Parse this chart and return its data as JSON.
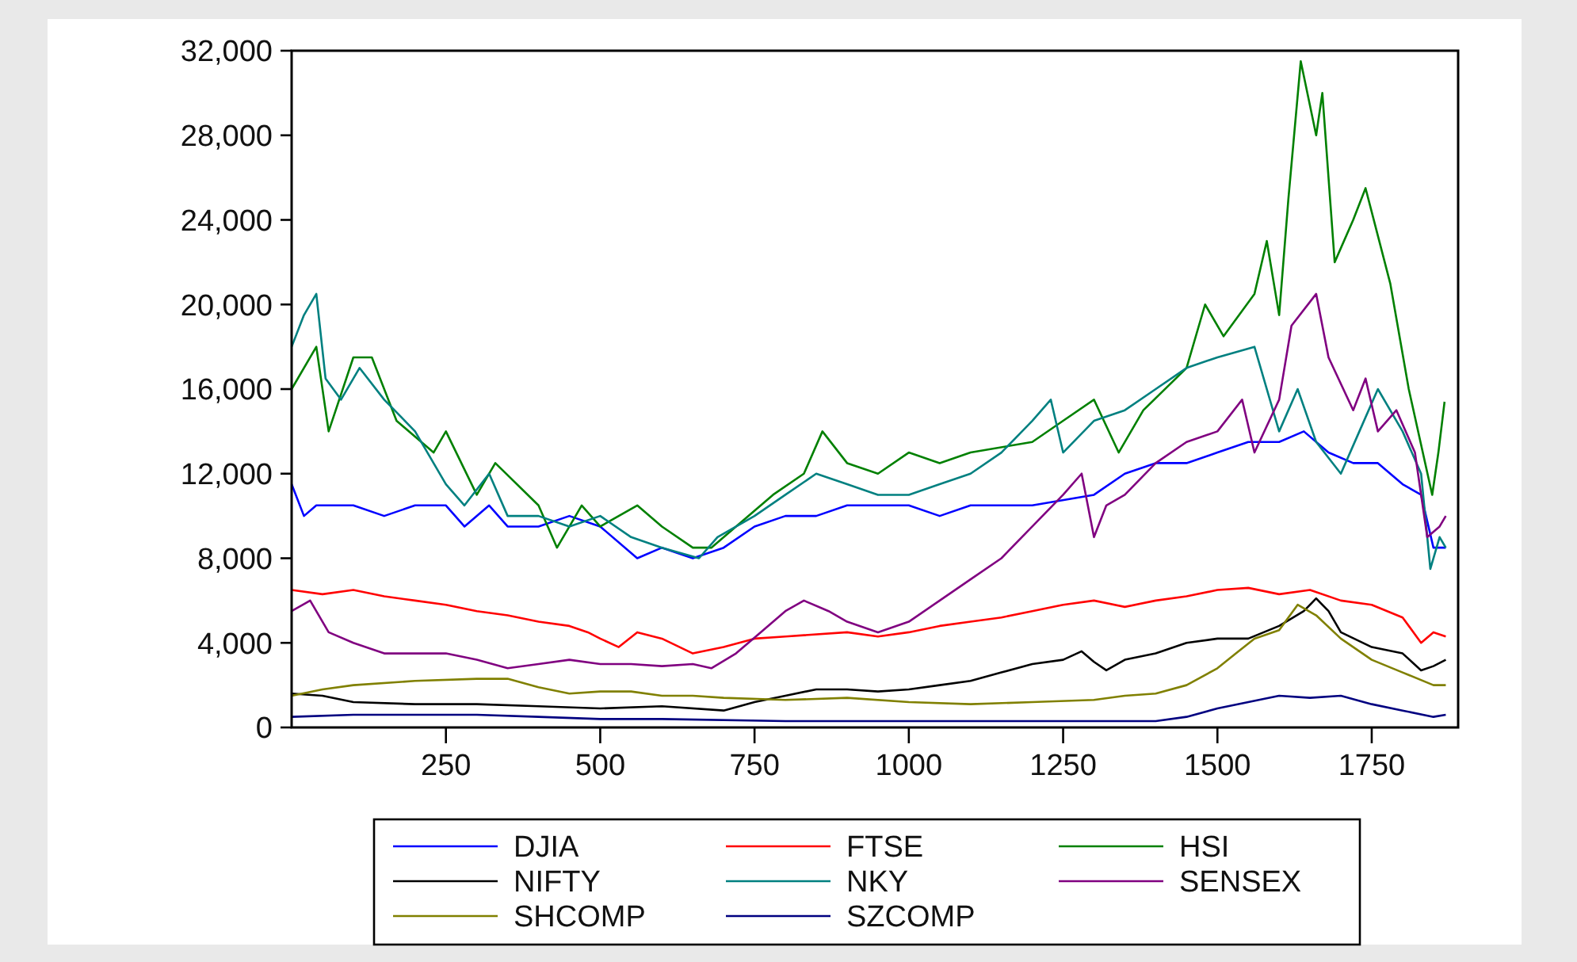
{
  "chart_data": {
    "type": "line",
    "xlim": [
      0,
      1890
    ],
    "xticks": [
      250,
      500,
      750,
      1000,
      1250,
      1500,
      1750
    ],
    "ylim": [
      0,
      32000
    ],
    "yticks": [
      {
        "value": 0,
        "label": "0"
      },
      {
        "value": 4000,
        "label": "4,000"
      },
      {
        "value": 8000,
        "label": "8,000"
      },
      {
        "value": 12000,
        "label": "12,000"
      },
      {
        "value": 16000,
        "label": "16,000"
      },
      {
        "value": 20000,
        "label": "20,000"
      },
      {
        "value": 24000,
        "label": "24,000"
      },
      {
        "value": 28000,
        "label": "28,000"
      },
      {
        "value": 32000,
        "label": "32,000"
      }
    ],
    "grid": false,
    "legend": "bottom",
    "marker": "none",
    "line_style": "solid",
    "series": [
      {
        "name": "DJIA",
        "color": "#0000ff",
        "x": [
          0,
          20,
          40,
          100,
          150,
          200,
          250,
          280,
          320,
          350,
          400,
          450,
          500,
          560,
          600,
          650,
          700,
          750,
          800,
          850,
          900,
          1000,
          1050,
          1100,
          1200,
          1300,
          1350,
          1400,
          1450,
          1500,
          1550,
          1600,
          1640,
          1680,
          1720,
          1760,
          1800,
          1830,
          1850,
          1870
        ],
        "values": [
          11500,
          10000,
          10500,
          10500,
          10000,
          10500,
          10500,
          9500,
          10500,
          9500,
          9500,
          10000,
          9500,
          8000,
          8500,
          8000,
          8500,
          9500,
          10000,
          10000,
          10500,
          10500,
          10000,
          10500,
          10500,
          11000,
          12000,
          12500,
          12500,
          13000,
          13500,
          13500,
          14000,
          13000,
          12500,
          12500,
          11500,
          11000,
          8500,
          8500
        ]
      },
      {
        "name": "FTSE",
        "color": "#ff0000",
        "x": [
          0,
          50,
          100,
          150,
          200,
          250,
          300,
          350,
          400,
          450,
          480,
          500,
          530,
          560,
          600,
          650,
          700,
          750,
          800,
          900,
          950,
          1000,
          1050,
          1100,
          1150,
          1200,
          1250,
          1300,
          1350,
          1400,
          1450,
          1500,
          1550,
          1600,
          1650,
          1700,
          1750,
          1800,
          1830,
          1850,
          1870
        ],
        "values": [
          6500,
          6300,
          6500,
          6200,
          6000,
          5800,
          5500,
          5300,
          5000,
          4800,
          4500,
          4200,
          3800,
          4500,
          4200,
          3500,
          3800,
          4200,
          4300,
          4500,
          4300,
          4500,
          4800,
          5000,
          5200,
          5500,
          5800,
          6000,
          5700,
          6000,
          6200,
          6500,
          6600,
          6300,
          6500,
          6000,
          5800,
          5200,
          4000,
          4500,
          4300
        ]
      },
      {
        "name": "HSI",
        "color": "#008000",
        "x": [
          0,
          40,
          60,
          100,
          130,
          170,
          230,
          250,
          300,
          330,
          400,
          430,
          470,
          500,
          560,
          600,
          650,
          680,
          720,
          780,
          830,
          860,
          900,
          950,
          1000,
          1050,
          1100,
          1200,
          1250,
          1300,
          1340,
          1380,
          1450,
          1480,
          1510,
          1560,
          1580,
          1600,
          1615,
          1635,
          1660,
          1670,
          1690,
          1720,
          1740,
          1780,
          1810,
          1848,
          1858,
          1868
        ],
        "values": [
          16000,
          18000,
          14000,
          17500,
          17500,
          14500,
          13000,
          14000,
          11000,
          12500,
          10500,
          8500,
          10500,
          9500,
          10500,
          9500,
          8500,
          8500,
          9500,
          11000,
          12000,
          14000,
          12500,
          12000,
          13000,
          12500,
          13000,
          13500,
          14500,
          15500,
          13000,
          15000,
          17000,
          20000,
          18500,
          20500,
          23000,
          19500,
          25000,
          31500,
          28000,
          30000,
          22000,
          24000,
          25500,
          21000,
          16000,
          11000,
          13000,
          15400
        ]
      },
      {
        "name": "NIFTY",
        "color": "#000000",
        "x": [
          0,
          50,
          100,
          200,
          300,
          400,
          500,
          600,
          700,
          750,
          800,
          850,
          900,
          950,
          1000,
          1050,
          1100,
          1150,
          1200,
          1250,
          1280,
          1300,
          1320,
          1350,
          1400,
          1450,
          1500,
          1550,
          1600,
          1640,
          1660,
          1680,
          1700,
          1750,
          1800,
          1830,
          1850,
          1870
        ],
        "values": [
          1600,
          1500,
          1200,
          1100,
          1100,
          1000,
          900,
          1000,
          800,
          1200,
          1500,
          1800,
          1800,
          1700,
          1800,
          2000,
          2200,
          2600,
          3000,
          3200,
          3600,
          3100,
          2700,
          3200,
          3500,
          4000,
          4200,
          4200,
          4800,
          5500,
          6100,
          5500,
          4500,
          3800,
          3500,
          2700,
          2900,
          3200
        ]
      },
      {
        "name": "NKY",
        "color": "#008080",
        "x": [
          0,
          20,
          40,
          55,
          80,
          110,
          150,
          200,
          250,
          280,
          320,
          350,
          400,
          450,
          500,
          550,
          600,
          660,
          690,
          750,
          800,
          850,
          900,
          950,
          1000,
          1050,
          1100,
          1150,
          1200,
          1230,
          1250,
          1300,
          1350,
          1400,
          1450,
          1500,
          1560,
          1600,
          1630,
          1660,
          1700,
          1730,
          1760,
          1800,
          1830,
          1845,
          1860,
          1870
        ],
        "values": [
          18000,
          19500,
          20500,
          16500,
          15500,
          17000,
          15500,
          14000,
          11500,
          10500,
          12000,
          10000,
          10000,
          9500,
          10000,
          9000,
          8500,
          8000,
          9000,
          10000,
          11000,
          12000,
          11500,
          11000,
          11000,
          11500,
          12000,
          13000,
          14500,
          15500,
          13000,
          14500,
          15000,
          16000,
          17000,
          17500,
          18000,
          14000,
          16000,
          13500,
          12000,
          14000,
          16000,
          14000,
          12000,
          7500,
          9000,
          8500
        ]
      },
      {
        "name": "SENSEX",
        "color": "#800080",
        "x": [
          0,
          30,
          60,
          100,
          150,
          200,
          250,
          300,
          350,
          400,
          450,
          500,
          550,
          600,
          650,
          680,
          720,
          760,
          800,
          830,
          870,
          900,
          950,
          1000,
          1050,
          1100,
          1150,
          1200,
          1250,
          1280,
          1300,
          1320,
          1350,
          1400,
          1450,
          1500,
          1540,
          1560,
          1600,
          1620,
          1660,
          1680,
          1720,
          1740,
          1760,
          1790,
          1820,
          1840,
          1860,
          1870
        ],
        "values": [
          5500,
          6000,
          4500,
          4000,
          3500,
          3500,
          3500,
          3200,
          2800,
          3000,
          3200,
          3000,
          3000,
          2900,
          3000,
          2800,
          3500,
          4500,
          5500,
          6000,
          5500,
          5000,
          4500,
          5000,
          6000,
          7000,
          8000,
          9500,
          11000,
          12000,
          9000,
          10500,
          11000,
          12500,
          13500,
          14000,
          15500,
          13000,
          15500,
          19000,
          20500,
          17500,
          15000,
          16500,
          14000,
          15000,
          13000,
          9000,
          9500,
          10000
        ]
      },
      {
        "name": "SHCOMP",
        "color": "#808000",
        "x": [
          0,
          50,
          100,
          200,
          300,
          350,
          400,
          450,
          500,
          550,
          600,
          650,
          700,
          800,
          900,
          1000,
          1100,
          1200,
          1300,
          1350,
          1400,
          1450,
          1500,
          1530,
          1560,
          1600,
          1630,
          1660,
          1700,
          1750,
          1800,
          1850,
          1870
        ],
        "values": [
          1500,
          1800,
          2000,
          2200,
          2300,
          2300,
          1900,
          1600,
          1700,
          1700,
          1500,
          1500,
          1400,
          1300,
          1400,
          1200,
          1100,
          1200,
          1300,
          1500,
          1600,
          2000,
          2800,
          3500,
          4200,
          4600,
          5800,
          5300,
          4200,
          3200,
          2600,
          2000,
          2000
        ]
      },
      {
        "name": "SZCOMP",
        "color": "#000080",
        "x": [
          0,
          100,
          200,
          300,
          400,
          500,
          600,
          800,
          1000,
          1200,
          1400,
          1450,
          1500,
          1550,
          1600,
          1650,
          1700,
          1750,
          1800,
          1850,
          1870
        ],
        "values": [
          500,
          600,
          600,
          600,
          500,
          400,
          400,
          300,
          300,
          300,
          300,
          500,
          900,
          1200,
          1500,
          1400,
          1500,
          1100,
          800,
          500,
          600
        ]
      }
    ]
  }
}
